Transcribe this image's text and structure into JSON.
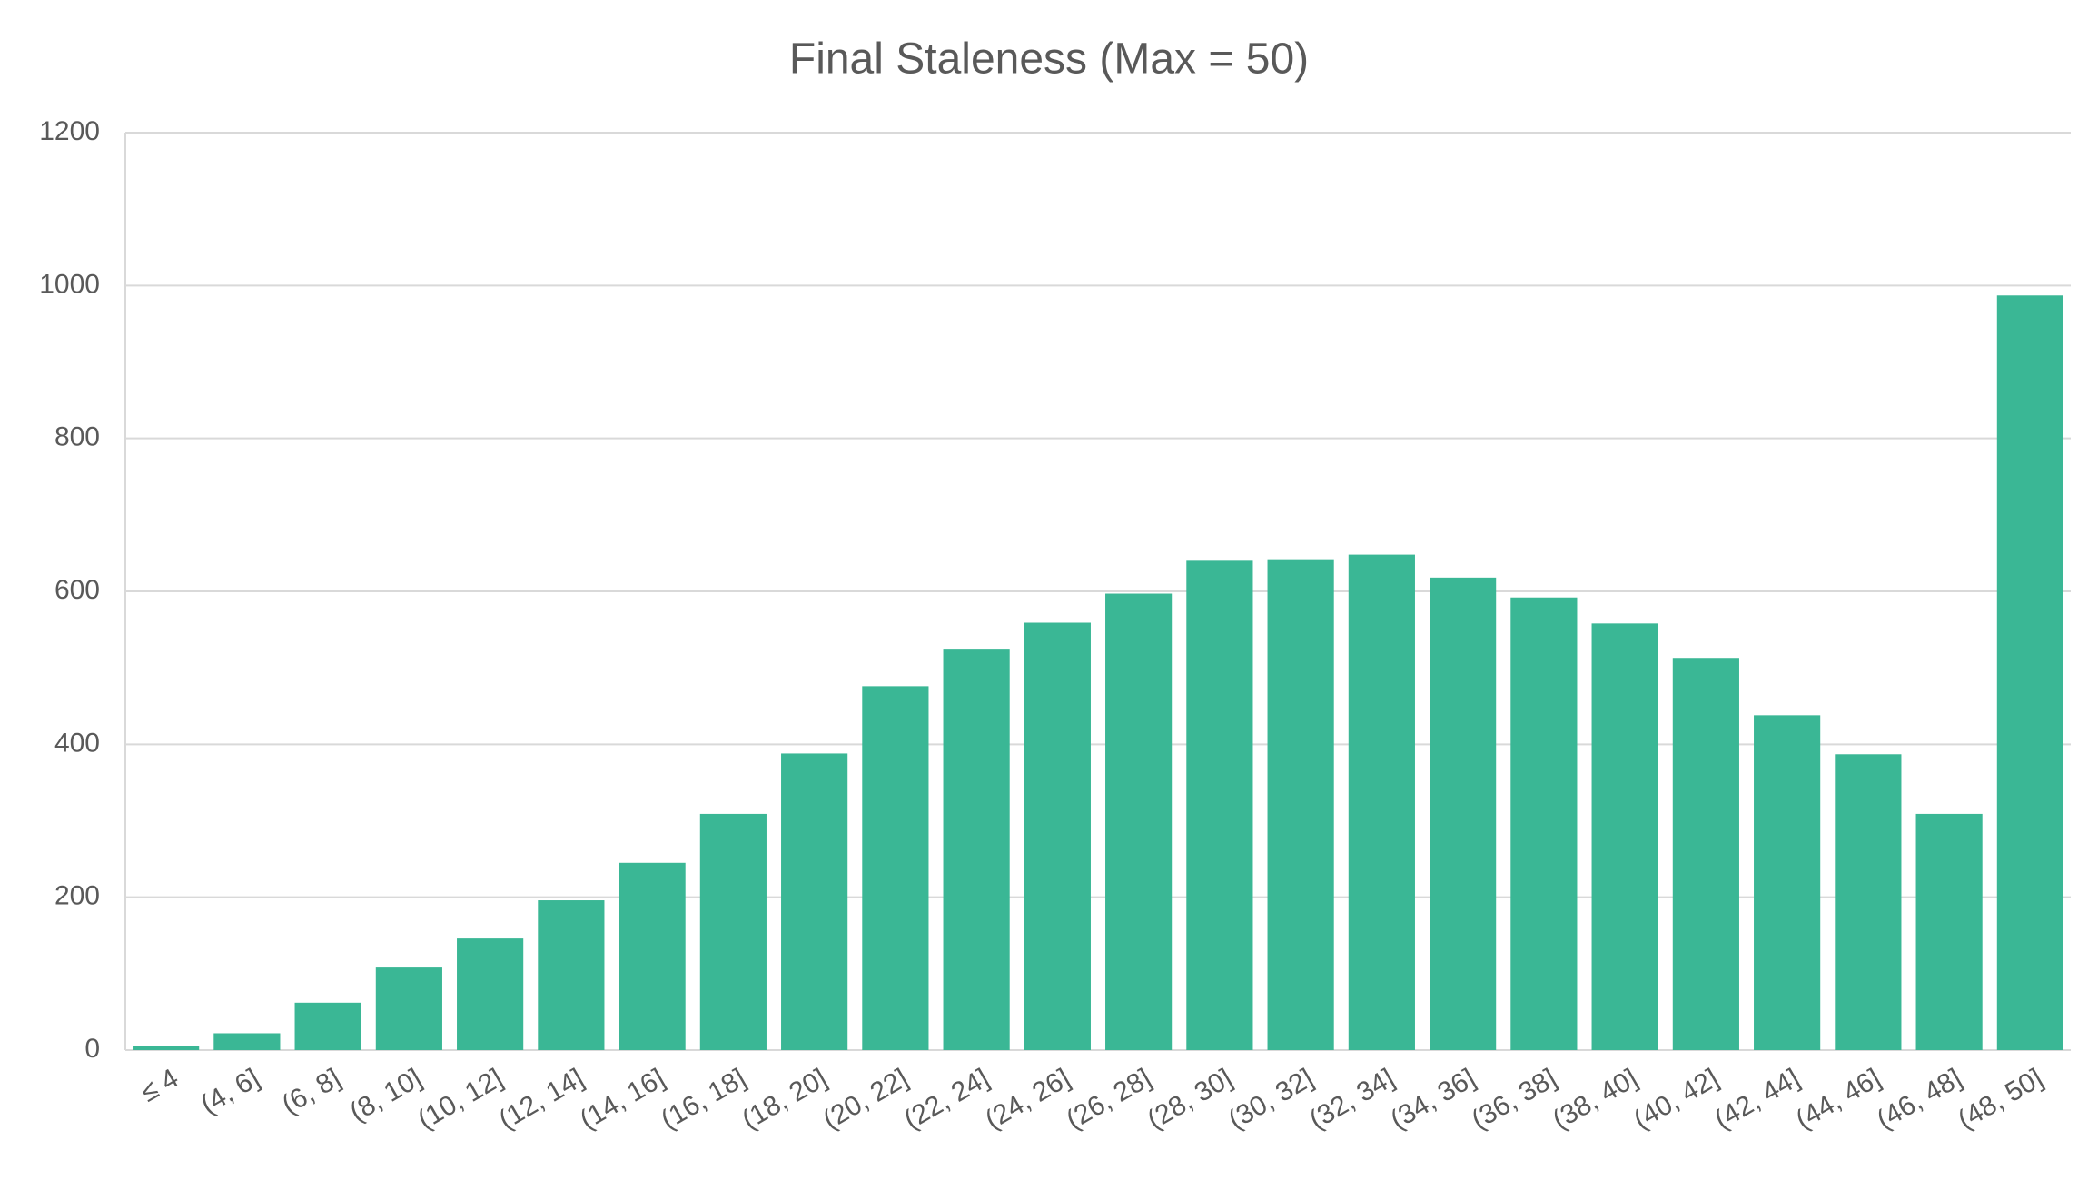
{
  "chart_data": {
    "type": "bar",
    "title": "Final Staleness (Max = 50)",
    "categories": [
      "≤ 4",
      "(4, 6]",
      "(6, 8]",
      "(8, 10]",
      "(10, 12]",
      "(12, 14]",
      "(14, 16]",
      "(16, 18]",
      "(18, 20]",
      "(20, 22]",
      "(22, 24]",
      "(24, 26]",
      "(26, 28]",
      "(28, 30]",
      "(30, 32]",
      "(32, 34]",
      "(34, 36]",
      "(36, 38]",
      "(38, 40]",
      "(40, 42]",
      "(42, 44]",
      "(44, 46]",
      "(46, 48]",
      "(48, 50]"
    ],
    "values": [
      5,
      22,
      62,
      108,
      146,
      196,
      245,
      309,
      388,
      476,
      525,
      559,
      597,
      640,
      642,
      648,
      618,
      592,
      558,
      513,
      438,
      387,
      309,
      987
    ],
    "color": "#3ab795",
    "ylim": [
      0,
      1200
    ],
    "yticks": [
      0,
      200,
      400,
      600,
      800,
      1000,
      1200
    ],
    "grid": true
  }
}
